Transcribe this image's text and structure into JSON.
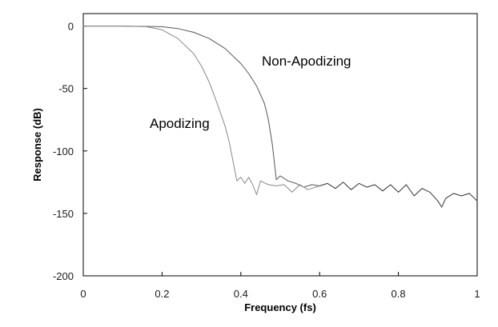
{
  "chart_data": {
    "type": "line",
    "title": "",
    "xlabel": "Frequency (fs)",
    "ylabel": "Response (dB)",
    "xlim": [
      0,
      1
    ],
    "ylim": [
      -200,
      10
    ],
    "x_ticks": [
      0,
      0.2,
      0.4,
      0.6,
      0.8,
      1
    ],
    "x_tick_labels": [
      "0",
      "0.2",
      "0.4",
      "0.6",
      "0.8",
      "1"
    ],
    "y_ticks": [
      0,
      -50,
      -100,
      -150,
      -200
    ],
    "y_tick_labels": [
      "0",
      "-50",
      "-100",
      "-150",
      "-200"
    ],
    "grid": false,
    "legend": "none",
    "annotations": [
      {
        "text": "Non-Apodizing",
        "series": "non_apodizing"
      },
      {
        "text": "Apodizing",
        "series": "apodizing"
      }
    ],
    "series": [
      {
        "id": "non_apodizing",
        "color": "#555555",
        "x": [
          0,
          0.1,
          0.2,
          0.24,
          0.28,
          0.32,
          0.36,
          0.4,
          0.42,
          0.44,
          0.46,
          0.47,
          0.48,
          0.49,
          0.5,
          0.52,
          0.54,
          0.56,
          0.58,
          0.6
        ],
        "y": [
          0,
          0,
          -0.5,
          -2,
          -5,
          -10,
          -18,
          -30,
          -38,
          -48,
          -62,
          -75,
          -95,
          -123,
          -120,
          -124,
          -126,
          -129,
          -127,
          -128
        ]
      },
      {
        "id": "apodizing",
        "color": "#888888",
        "x": [
          0,
          0.1,
          0.16,
          0.2,
          0.24,
          0.28,
          0.3,
          0.32,
          0.34,
          0.36,
          0.37,
          0.38,
          0.385,
          0.39,
          0.4,
          0.41,
          0.42,
          0.43,
          0.44,
          0.45,
          0.47,
          0.49,
          0.51,
          0.53,
          0.55,
          0.57,
          0.6
        ],
        "y": [
          0,
          0,
          -0.5,
          -3,
          -10,
          -22,
          -32,
          -45,
          -62,
          -80,
          -92,
          -108,
          -116,
          -124,
          -121,
          -126,
          -121,
          -127,
          -135,
          -124,
          -127,
          -128,
          -127,
          -133,
          -127,
          -131,
          -128
        ]
      },
      {
        "id": "combined_tail",
        "color": "#333333",
        "x": [
          0.6,
          0.62,
          0.64,
          0.66,
          0.68,
          0.7,
          0.72,
          0.74,
          0.76,
          0.78,
          0.8,
          0.82,
          0.84,
          0.86,
          0.88,
          0.9,
          0.91,
          0.92,
          0.94,
          0.96,
          0.98,
          1.0
        ],
        "y": [
          -128,
          -126,
          -130,
          -125,
          -131,
          -126,
          -129,
          -127,
          -132,
          -127,
          -133,
          -127,
          -136,
          -130,
          -133,
          -140,
          -145,
          -138,
          -134,
          -136,
          -134,
          -140
        ]
      }
    ]
  }
}
